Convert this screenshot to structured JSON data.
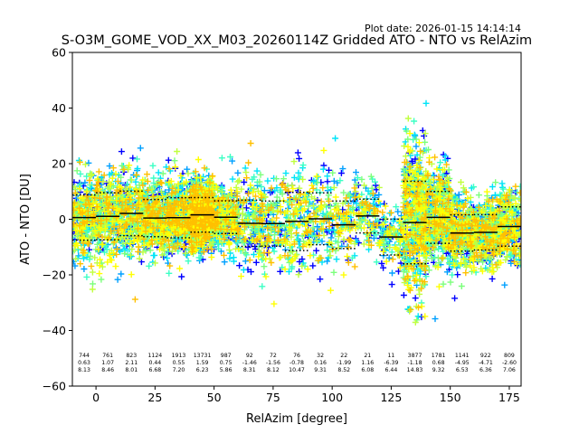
{
  "chart_data": {
    "type": "scatter",
    "title": "S-O3M_GOME_VOD_XX_M03_20260114Z Gridded ATO - NTO vs RelAzim",
    "plot_date": "Plot date: 2026-01-15 14:14:14",
    "xlabel": "RelAzim [degree]",
    "ylabel": "ATO - NTO [DU]",
    "xlim": [
      -10,
      180
    ],
    "ylim": [
      -60,
      60
    ],
    "xticks": [
      0,
      25,
      50,
      75,
      100,
      125,
      150,
      175
    ],
    "yticks": [
      -60,
      -40,
      -20,
      0,
      20,
      40,
      60
    ],
    "xtick_labels": [
      "0",
      "25",
      "50",
      "75",
      "100",
      "125",
      "150",
      "175"
    ],
    "ytick_labels": [
      "−60",
      "−40",
      "−20",
      "0",
      "20",
      "40",
      "60"
    ],
    "marker_colors": [
      "#0000ff",
      "#00a0ff",
      "#00e4f8",
      "#3cffc4",
      "#7cff7c",
      "#c0ff40",
      "#ffff00",
      "#ffc000"
    ],
    "bins": [
      {
        "center": -5,
        "count": "744",
        "mean": "0.63",
        "std": "8.13",
        "mean_val": 0.63,
        "std_val": 8.13
      },
      {
        "center": 5,
        "count": "761",
        "mean": "1.07",
        "std": "8.46",
        "mean_val": 1.07,
        "std_val": 8.46
      },
      {
        "center": 15,
        "count": "823",
        "mean": "2.11",
        "std": "8.01",
        "mean_val": 2.11,
        "std_val": 8.01
      },
      {
        "center": 25,
        "count": "1124",
        "mean": "0.44",
        "std": "6.68",
        "mean_val": 0.44,
        "std_val": 6.68
      },
      {
        "center": 35,
        "count": "1913",
        "mean": "0.55",
        "std": "7.20",
        "mean_val": 0.55,
        "std_val": 7.2
      },
      {
        "center": 45,
        "count": "13731",
        "mean": "1.59",
        "std": "6.23",
        "mean_val": 1.59,
        "std_val": 6.23
      },
      {
        "center": 55,
        "count": "987",
        "mean": "0.75",
        "std": "5.86",
        "mean_val": 0.75,
        "std_val": 5.86
      },
      {
        "center": 65,
        "count": "92",
        "mean": "-1.46",
        "std": "8.31",
        "mean_val": -1.46,
        "std_val": 8.31
      },
      {
        "center": 75,
        "count": "72",
        "mean": "-1.56",
        "std": "8.12",
        "mean_val": -1.56,
        "std_val": 8.12
      },
      {
        "center": 85,
        "count": "76",
        "mean": "-0.78",
        "std": "10.47",
        "mean_val": -0.78,
        "std_val": 10.47
      },
      {
        "center": 95,
        "count": "32",
        "mean": "0.16",
        "std": "9.31",
        "mean_val": 0.16,
        "std_val": 9.31
      },
      {
        "center": 105,
        "count": "22",
        "mean": "-1.99",
        "std": "8.52",
        "mean_val": -1.99,
        "std_val": 8.52
      },
      {
        "center": 115,
        "count": "21",
        "mean": "1.16",
        "std": "6.08",
        "mean_val": 1.16,
        "std_val": 6.08
      },
      {
        "center": 125,
        "count": "11",
        "mean": "-6.39",
        "std": "6.44",
        "mean_val": -6.39,
        "std_val": 6.44
      },
      {
        "center": 135,
        "count": "3877",
        "mean": "-1.18",
        "std": "14.83",
        "mean_val": -1.18,
        "std_val": 14.83
      },
      {
        "center": 145,
        "count": "1781",
        "mean": "0.68",
        "std": "9.32",
        "mean_val": 0.68,
        "std_val": 9.32
      },
      {
        "center": 155,
        "count": "1141",
        "mean": "-4.95",
        "std": "6.53",
        "mean_val": -4.95,
        "std_val": 6.53
      },
      {
        "center": 165,
        "count": "922",
        "mean": "-4.71",
        "std": "6.36",
        "mean_val": -4.71,
        "std_val": 6.36
      },
      {
        "center": 175,
        "count": "809",
        "mean": "-2.60",
        "std": "7.06",
        "mean_val": -2.6,
        "std_val": 7.06
      }
    ]
  }
}
